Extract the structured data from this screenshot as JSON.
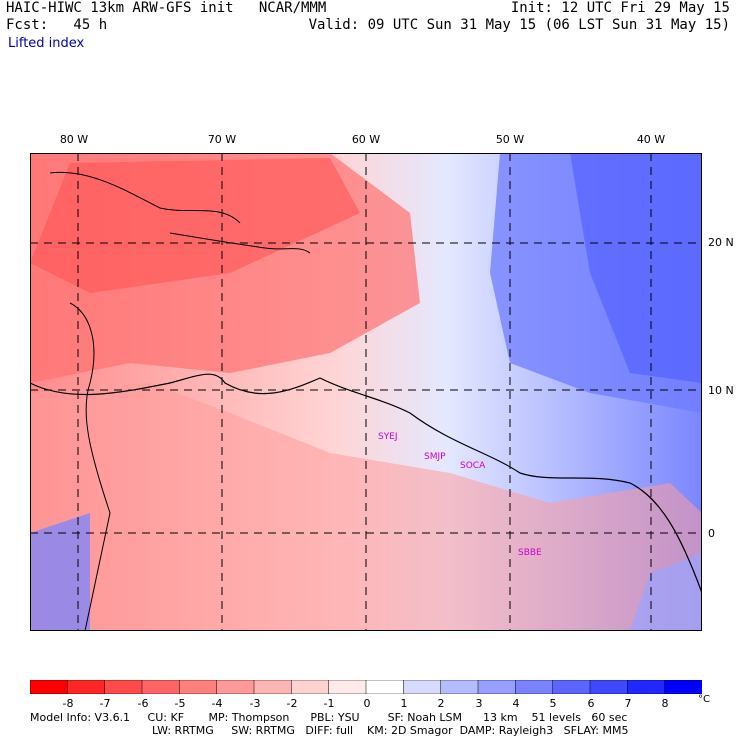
{
  "header": {
    "model_line": "HAIC-HIWC 13km ARW-GFS init   NCAR/MMM",
    "init_line": "Init: 12 UTC Fri 29 May 15",
    "fcst_line": "Fcst:   45 h",
    "valid_line": "Valid: 09 UTC Sun 31 May 15 (06 LST Sun 31 May 15)"
  },
  "variable": "Lifted index",
  "map": {
    "longitude_labels": [
      "80 W",
      "70 W",
      "60 W",
      "50 W",
      "40 W"
    ],
    "latitude_labels": [
      "20 N",
      "10 N",
      "0"
    ],
    "station_labels": [
      "SYEJ",
      "SMJP",
      "SOCA",
      "SBBE"
    ],
    "station_color": "#cc00cc",
    "field_description_colors": {
      "unstable": "#ff2020",
      "stable": "#2040ff"
    }
  },
  "colorbar": {
    "ticks": [
      "-8",
      "-7",
      "-6",
      "-5",
      "-4",
      "-3",
      "-2",
      "-1",
      "0",
      "1",
      "2",
      "3",
      "4",
      "5",
      "6",
      "7",
      "8"
    ],
    "unit": "°C",
    "colors": [
      "#ff0000",
      "#ff2525",
      "#ff4a4a",
      "#ff6464",
      "#ff7f7f",
      "#ff9999",
      "#ffb4b4",
      "#ffd2d2",
      "#ffeaea",
      "#ffffff",
      "#d6dbff",
      "#b4bcff",
      "#969eff",
      "#7a82ff",
      "#5c66ff",
      "#4048ff",
      "#2028ff",
      "#0000ff"
    ]
  },
  "footer": {
    "line1": "Model Info: V3.6.1     CU: KF       MP: Thompson      PBL: YSU        SF: Noah LSM      13 km    51 levels   60 sec",
    "line2": "LW: RRTMG     SW: RRTMG   DIFF: full    KM: 2D Smagor  DAMP: Rayleigh3   SFLAY: MM5"
  }
}
